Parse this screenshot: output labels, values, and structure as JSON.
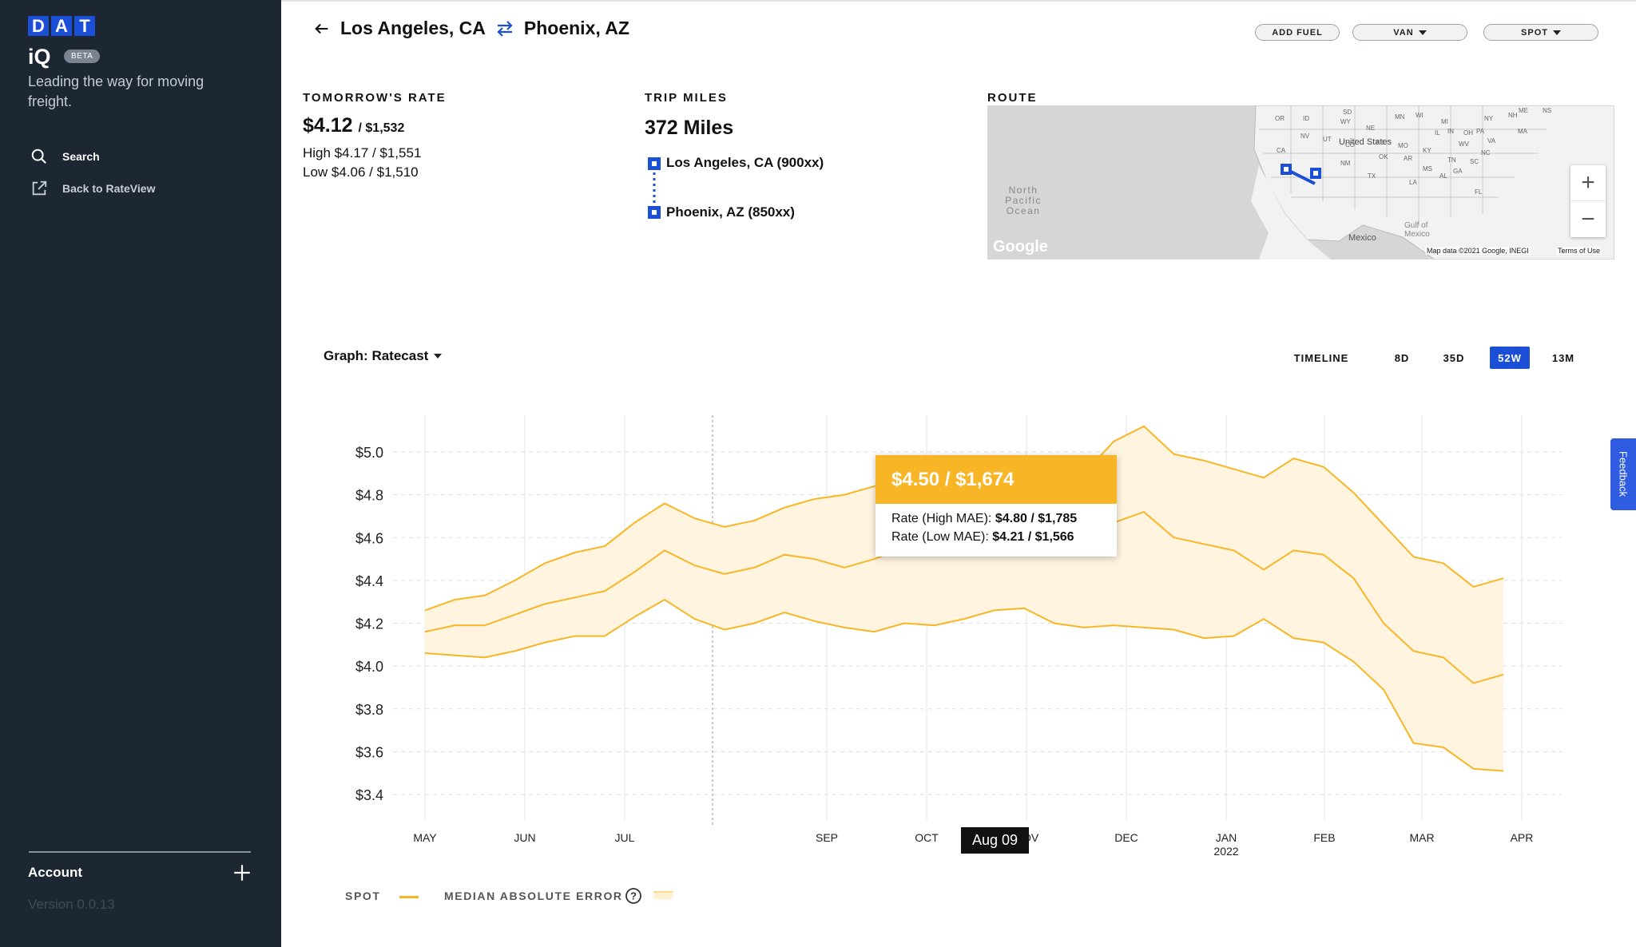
{
  "app": {
    "logo_letters": [
      "D",
      "A",
      "T"
    ],
    "name": "iQ",
    "badge": "BETA",
    "tagline": "Leading the way for moving freight.",
    "brand_color": "#1a4fd6",
    "accent_color": "#f8b626"
  },
  "sidebar": {
    "items": [
      {
        "label": "Search",
        "icon": "search-icon"
      },
      {
        "label": "Back to RateView",
        "icon": "external-link-icon"
      }
    ],
    "account": "Account",
    "version": "Version 0.0.13"
  },
  "header": {
    "origin": "Los Angeles, CA",
    "destination": "Phoenix, AZ",
    "buttons": {
      "fuel": "ADD FUEL",
      "equipment": "VAN",
      "rate_type": "SPOT"
    }
  },
  "rate": {
    "label": "TOMORROW'S RATE",
    "value": "$4.12",
    "total": "/ $1,532",
    "high": "High $4.17 / $1,551",
    "low": "Low $4.06 / $1,510"
  },
  "trip": {
    "label": "TRIP MILES",
    "miles": "372 Miles",
    "origin": "Los Angeles, CA (900xx)",
    "destination": "Phoenix, AZ (850xx)"
  },
  "route": {
    "label": "ROUTE",
    "map_labels": {
      "country": "United States",
      "ocean": "North Pacific Ocean",
      "gulf": "Gulf of Mexico",
      "mexico": "Mexico",
      "credit": "Map data ©2021 Google, INEGI",
      "terms": "Terms of Use",
      "brand": "Google"
    },
    "states": [
      "OR",
      "ID",
      "SD",
      "WY",
      "NE",
      "NV",
      "UT",
      "CO",
      "KS",
      "MO",
      "OK",
      "AR",
      "NM",
      "TX",
      "LA",
      "MS",
      "AL",
      "GA",
      "KY",
      "IL",
      "IN",
      "OH",
      "PA",
      "NY",
      "MI",
      "WI",
      "MN",
      "VA",
      "NC",
      "SC",
      "FL",
      "TN",
      "WV",
      "ME",
      "NH",
      "NS",
      "MA",
      "CA"
    ],
    "zoom_in": "+",
    "zoom_out": "−"
  },
  "graph": {
    "title": "Graph: Ratecast",
    "timeline_label": "TIMELINE",
    "ranges": [
      "8D",
      "35D",
      "52W",
      "13M"
    ],
    "active_range": "52W",
    "tooltip": {
      "value": "$4.50 / $1,674",
      "high_label": "Rate (High MAE):",
      "high_value": "$4.80 / $1,785",
      "low_label": "Rate (Low MAE):",
      "low_value": "$4.21 / $1,566"
    },
    "hover_date": "Aug 09",
    "legend": {
      "spot": "SPOT",
      "mae": "MEDIAN ABSOLUTE ERROR",
      "help_icon": "question-circle-icon"
    }
  },
  "feedback": "Feedback",
  "chart_data": {
    "type": "line",
    "x_labels": [
      "MAY",
      "JUN",
      "JUL",
      "SEP",
      "OCT",
      "NOV",
      "DEC",
      "JAN",
      "FEB",
      "MAR",
      "APR"
    ],
    "x_sublabels": {
      "JAN": "2022"
    },
    "ylim": [
      3.4,
      5.0
    ],
    "yticks": [
      5.0,
      4.8,
      4.6,
      4.4,
      4.2,
      4.0,
      3.8,
      3.6,
      3.4
    ],
    "ytick_labels": [
      "$5.0",
      "$4.8",
      "$4.6",
      "$4.4",
      "$4.2",
      "$4.0",
      "$3.8",
      "$3.6",
      "$3.4"
    ],
    "grid": true,
    "x_index": [
      0,
      0.3,
      0.6,
      0.9,
      1.2,
      1.5,
      1.8,
      2.1,
      2.4,
      2.7,
      3.0,
      3.3,
      3.6,
      3.9,
      4.2,
      4.5,
      4.8,
      5.1,
      5.4,
      5.7,
      6.0,
      6.3,
      6.6,
      6.9,
      7.2,
      7.5,
      7.8,
      8.1,
      8.4,
      8.7,
      9.0,
      9.3,
      9.6,
      9.9,
      10.2,
      10.5,
      10.8
    ],
    "series": [
      {
        "name": "SPOT",
        "values": [
          4.16,
          4.19,
          4.19,
          4.24,
          4.29,
          4.32,
          4.35,
          4.44,
          4.54,
          4.47,
          4.43,
          4.46,
          4.52,
          4.5,
          4.46,
          4.5,
          4.55,
          4.53,
          4.52,
          4.54,
          4.54,
          4.52,
          4.56,
          4.67,
          4.72,
          4.6,
          4.57,
          4.54,
          4.45,
          4.54,
          4.52,
          4.41,
          4.2,
          4.07,
          4.04,
          3.92,
          3.96
        ]
      },
      {
        "name": "High MAE",
        "values": [
          4.26,
          4.31,
          4.33,
          4.4,
          4.48,
          4.53,
          4.56,
          4.67,
          4.76,
          4.69,
          4.65,
          4.68,
          4.74,
          4.78,
          4.8,
          4.84,
          4.88,
          4.85,
          4.84,
          4.87,
          4.88,
          4.86,
          4.9,
          5.05,
          5.12,
          4.99,
          4.96,
          4.92,
          4.88,
          4.97,
          4.93,
          4.81,
          4.66,
          4.51,
          4.48,
          4.37,
          4.41
        ]
      },
      {
        "name": "Low MAE",
        "values": [
          4.06,
          4.05,
          4.04,
          4.07,
          4.11,
          4.14,
          4.14,
          4.23,
          4.31,
          4.22,
          4.17,
          4.2,
          4.25,
          4.21,
          4.18,
          4.16,
          4.2,
          4.19,
          4.22,
          4.26,
          4.27,
          4.2,
          4.18,
          4.19,
          4.18,
          4.17,
          4.13,
          4.14,
          4.22,
          4.13,
          4.11,
          4.02,
          3.89,
          3.64,
          3.62,
          3.52,
          3.51
        ]
      }
    ]
  }
}
